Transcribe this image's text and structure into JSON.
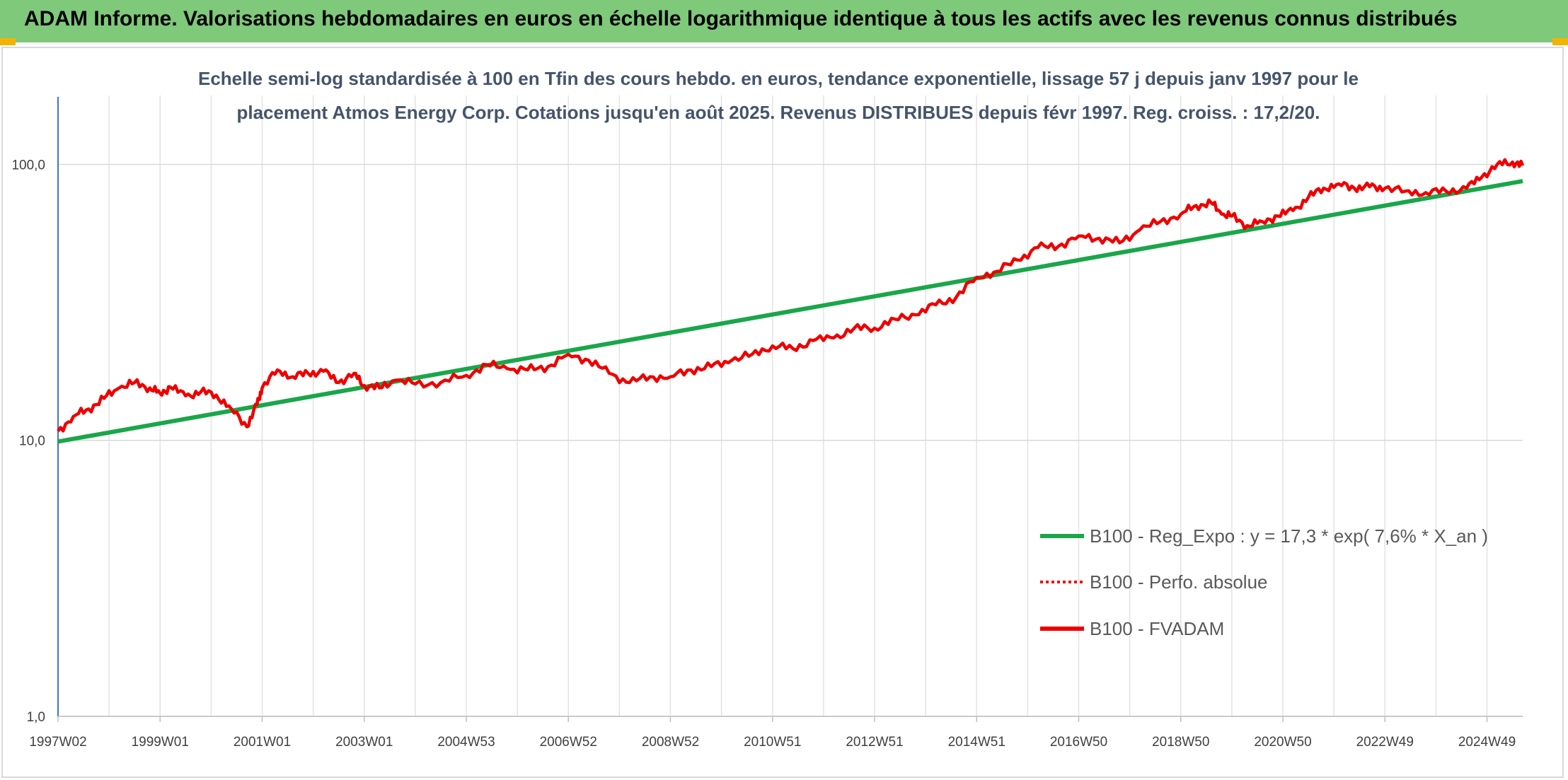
{
  "header": {
    "title": "ADAM Informe. Valorisations hebdomadaires en euros en échelle logarithmique identique à tous les actifs avec les revenus connus distribués"
  },
  "colors": {
    "banner": "#7ec97a",
    "trend": "#1aa64a",
    "price": "#ee0000",
    "accent": "#f2b400"
  },
  "chart_data": {
    "type": "line",
    "title_lines": [
      "Echelle semi-log standardisée à 100 en Tfin des cours hebdo. en euros, tendance exponentielle, lissage 57 j depuis janv 1997 pour le",
      "placement Atmos Energy Corp. Cotations jusqu'en août 2025. Revenus DISTRIBUES depuis févr 1997. Reg. croiss. : 17,2/20."
    ],
    "y_scale": "log",
    "ylim": [
      1,
      200
    ],
    "y_ticks": [
      "1,0",
      "10,0",
      "100,0"
    ],
    "y_tick_values": [
      1,
      10,
      100
    ],
    "xlim": [
      1997.0,
      2025.7
    ],
    "x_ticks": [
      "1997W02",
      "1999W01",
      "2001W01",
      "2003W01",
      "2004W53",
      "2006W52",
      "2008W52",
      "2010W51",
      "2012W51",
      "2014W51",
      "2016W50",
      "2018W50",
      "2020W50",
      "2022W49",
      "2024W49"
    ],
    "x_tick_values": [
      1997.0,
      1999.0,
      2001.0,
      2003.0,
      2005.0,
      2007.0,
      2009.0,
      2011.0,
      2013.0,
      2015.0,
      2017.0,
      2019.0,
      2021.0,
      2023.0,
      2025.0
    ],
    "grid": true,
    "legend_position": "right",
    "series": [
      {
        "name": "B100 - Reg_Expo : y = 17,3 * exp( 7,6% *  X_an )",
        "style": "solid",
        "color": "#1aa64a",
        "x": [
          1997.0,
          2025.7
        ],
        "y": [
          9.9,
          87
        ]
      },
      {
        "name": "B100 - Perfo. absolue",
        "style": "dotted",
        "color": "#ee0000",
        "x": [],
        "y": []
      },
      {
        "name": "B100 - FVADAM",
        "style": "solid",
        "color": "#ee0000",
        "x": [
          1997.0,
          1997.3,
          1997.6,
          1997.9,
          1998.2,
          1998.5,
          1998.8,
          1999.0,
          1999.2,
          1999.5,
          1999.8,
          2000.1,
          2000.4,
          2000.7,
          2000.9,
          2001.0,
          2001.3,
          2001.6,
          2001.9,
          2002.2,
          2002.5,
          2002.8,
          2003.0,
          2003.3,
          2003.6,
          2004.0,
          2004.5,
          2005.0,
          2005.4,
          2005.8,
          2006.2,
          2006.6,
          2007.0,
          2007.4,
          2007.8,
          2008.2,
          2008.6,
          2009.0,
          2009.4,
          2009.8,
          2010.2,
          2010.6,
          2011.0,
          2011.4,
          2011.8,
          2012.2,
          2012.6,
          2013.0,
          2013.4,
          2013.8,
          2014.2,
          2014.6,
          2015.0,
          2015.4,
          2015.8,
          2016.2,
          2016.6,
          2017.0,
          2017.4,
          2017.8,
          2018.2,
          2018.6,
          2019.0,
          2019.3,
          2019.6,
          2019.8,
          2020.0,
          2020.3,
          2020.6,
          2020.9,
          2021.2,
          2021.5,
          2021.8,
          2022.1,
          2022.4,
          2022.7,
          2023.0,
          2023.4,
          2023.8,
          2024.2,
          2024.6,
          2024.9,
          2025.2,
          2025.5,
          2025.7
        ],
        "y": [
          10.8,
          12.2,
          13.0,
          14.2,
          15.5,
          16.2,
          15.5,
          14.8,
          15.6,
          14.5,
          15.0,
          14.6,
          13.0,
          11.2,
          13.5,
          15.5,
          18.0,
          17.0,
          17.5,
          17.8,
          16.2,
          17.5,
          15.8,
          15.5,
          16.5,
          16.0,
          16.2,
          17.2,
          18.8,
          18.2,
          18.0,
          18.5,
          20.5,
          19.5,
          17.5,
          16.2,
          17.0,
          17.0,
          18.0,
          18.5,
          19.5,
          20.5,
          22.0,
          21.5,
          23.0,
          23.5,
          25.5,
          25.5,
          27.5,
          28.5,
          31.0,
          33.0,
          39.0,
          41.0,
          45.0,
          50.0,
          50.5,
          55.0,
          54.0,
          52.0,
          58.0,
          62.0,
          66.0,
          71.0,
          72.5,
          66.0,
          65.0,
          60.0,
          62.0,
          65.0,
          68.0,
          76.0,
          82.0,
          85.0,
          82.0,
          83.0,
          82.0,
          80.0,
          79.0,
          80.0,
          82.0,
          90.0,
          100.0,
          102.0,
          99.0
        ]
      }
    ]
  }
}
